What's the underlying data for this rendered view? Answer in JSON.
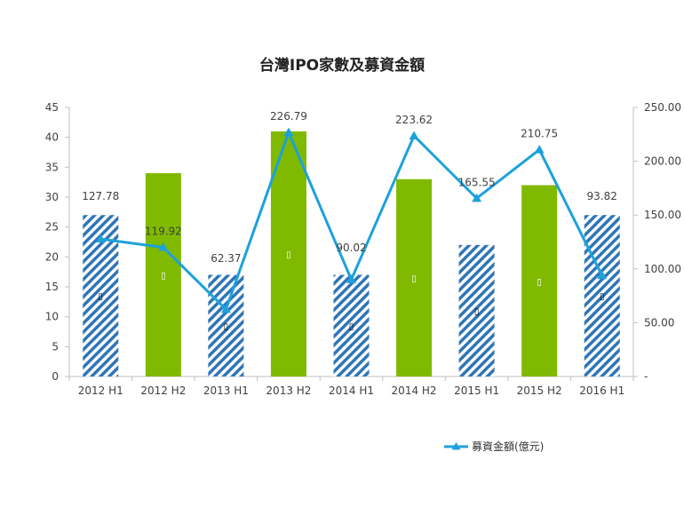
{
  "chart_data": {
    "type": "bar",
    "title": "台灣IPO家數及募資金額",
    "categories": [
      "2012 H1",
      "2012 H2",
      "2013 H1",
      "2013 H2",
      "2014 H1",
      "2014 H2",
      "2015 H1",
      "2015 H2",
      "2016 H1"
    ],
    "bar_values": [
      27,
      34,
      17,
      41,
      17,
      33,
      22,
      32,
      27
    ],
    "bar_styles": [
      "hatched",
      "solid",
      "hatched",
      "solid",
      "hatched",
      "solid",
      "hatched",
      "solid",
      "hatched"
    ],
    "bar_labels": [
      "▯",
      "▯",
      "▯",
      "▯",
      "▯",
      "▯",
      "▯",
      "▯",
      "▯"
    ],
    "line_series": {
      "name": "募資金額(億元)",
      "values": [
        127.78,
        119.92,
        62.37,
        226.79,
        90.02,
        223.62,
        165.55,
        210.75,
        93.82
      ],
      "labels": [
        "127.78",
        "119.92",
        "62.37",
        "226.79",
        "90.02",
        "223.62",
        "165.55",
        "210.75",
        "93.82"
      ]
    },
    "ylim_left": [
      0,
      45
    ],
    "yticks_left": [
      "0",
      "5",
      "10",
      "15",
      "20",
      "25",
      "30",
      "35",
      "40",
      "45"
    ],
    "ylim_right": [
      0,
      250
    ],
    "yticks_right": [
      "-",
      "50.00",
      "100.00",
      "150.00",
      "200.00",
      "250.00"
    ],
    "grid": false,
    "legend_position": "bottom-right"
  },
  "colors": {
    "bar_solid": "#7fba00",
    "bar_hatch": "#2e75b6",
    "line": "#1da1db",
    "axis": "#bfbfbf"
  }
}
